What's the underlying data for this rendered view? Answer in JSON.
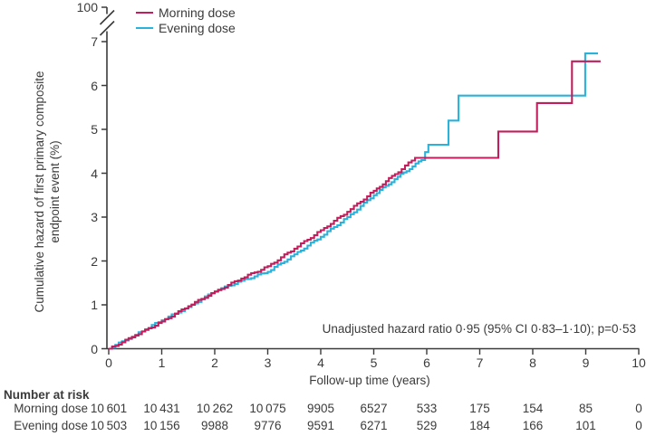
{
  "chart_data": {
    "type": "line",
    "subtype": "cumulative-hazard-step-curves",
    "title": "",
    "xlabel": "Follow-up time (years)",
    "ylabel": "Cumulative hazard of first primary composite endpoint event (%)",
    "ylabel_line1": "Cumulative hazard of first primary composite",
    "ylabel_line2": "endpoint event (%)",
    "xlim": [
      0,
      10
    ],
    "ylim": [
      0,
      7
    ],
    "grid": false,
    "axis_break": {
      "present": true,
      "top_label": "100"
    },
    "axes": {
      "x_tick_labels": [
        "0",
        "1",
        "2",
        "3",
        "4",
        "5",
        "6",
        "7",
        "8",
        "9",
        "10"
      ],
      "y_tick_labels": [
        "0",
        "1",
        "2",
        "3",
        "4",
        "5",
        "6",
        "7"
      ],
      "y_break_label": "100"
    },
    "legend_position": "top-left-inside",
    "legend": [
      "Morning dose",
      "Evening dose"
    ],
    "annotation": "Unadjusted hazard ratio 0·95 (95% CI 0·83–1·10); p=0·53",
    "colors": {
      "morning": "#C01E5C",
      "evening": "#2BB2DA",
      "axis": "#3B3B3B",
      "text": "#3B3B3B"
    },
    "series": [
      {
        "name": "Morning dose",
        "color": "#C01E5C",
        "step_points": [
          [
            0,
            0
          ],
          [
            0.5,
            0.3
          ],
          [
            1,
            0.62
          ],
          [
            1.5,
            0.97
          ],
          [
            2,
            1.3
          ],
          [
            2.5,
            1.6
          ],
          [
            3,
            1.88
          ],
          [
            3.5,
            2.28
          ],
          [
            4,
            2.7
          ],
          [
            4.5,
            3.12
          ],
          [
            5,
            3.6
          ],
          [
            5.4,
            3.98
          ],
          [
            5.78,
            4.35
          ],
          [
            7.35,
            4.95
          ],
          [
            8.08,
            5.6
          ],
          [
            8.74,
            6.55
          ],
          [
            9.28,
            6.55
          ]
        ]
      },
      {
        "name": "Evening dose",
        "color": "#2BB2DA",
        "step_points": [
          [
            0,
            0
          ],
          [
            0.5,
            0.32
          ],
          [
            1,
            0.65
          ],
          [
            1.5,
            0.95
          ],
          [
            2,
            1.31
          ],
          [
            2.5,
            1.55
          ],
          [
            3,
            1.75
          ],
          [
            3.5,
            2.15
          ],
          [
            4,
            2.55
          ],
          [
            4.5,
            3.0
          ],
          [
            5,
            3.5
          ],
          [
            5.45,
            3.92
          ],
          [
            5.9,
            4.3
          ],
          [
            5.97,
            4.48
          ],
          [
            6.03,
            4.65
          ],
          [
            6.41,
            5.2
          ],
          [
            6.6,
            5.77
          ],
          [
            8.99,
            6.73
          ],
          [
            9.23,
            6.73
          ]
        ]
      }
    ],
    "number_at_risk": {
      "header": "Number at risk",
      "timepoints": [
        0,
        1,
        2,
        3,
        4,
        5,
        6,
        7,
        8,
        9,
        10
      ],
      "rows": [
        {
          "label": "Morning dose",
          "counts": [
            "10 601",
            "10 431",
            "10 262",
            "10 075",
            "9905",
            "6527",
            "533",
            "175",
            "154",
            "85",
            "0"
          ]
        },
        {
          "label": "Evening dose",
          "counts": [
            "10 503",
            "10 156",
            "9988",
            "9776",
            "9591",
            "6271",
            "529",
            "184",
            "166",
            "101",
            "0"
          ]
        }
      ]
    }
  }
}
